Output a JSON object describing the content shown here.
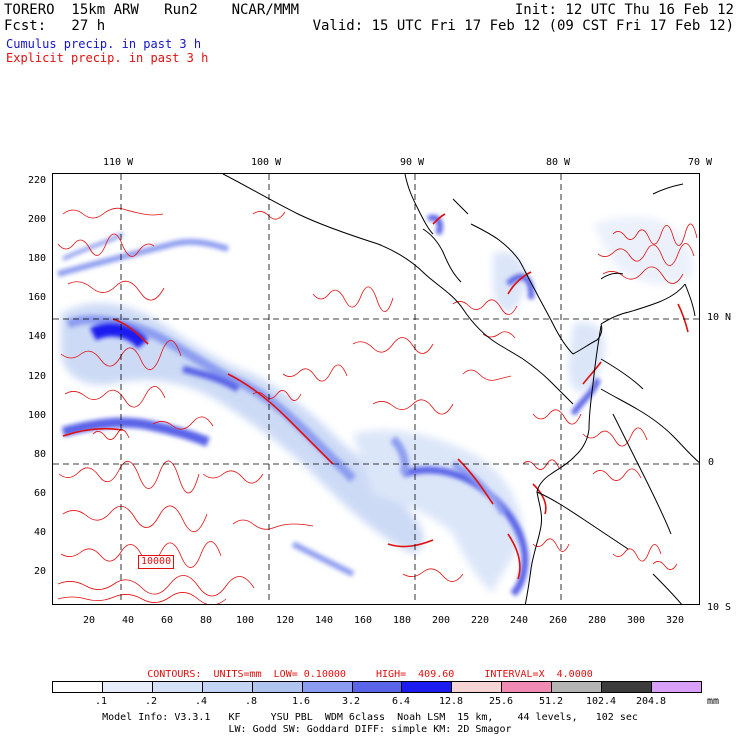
{
  "header": {
    "line1_left": "TORERO  15km ARW   Run2    NCAR/MMM",
    "line1_right": "Init: 12 UTC Thu 16 Feb 12",
    "line2_left": "Fcst:   27 h",
    "line2_right": "Valid: 15 UTC Fri 17 Feb 12 (09 CST Fri 17 Feb 12)",
    "legend_cumulus": "Cumulus precip. in past 3 h",
    "legend_explicit": "Explicit precip. in past 3 h"
  },
  "map": {
    "lon_labels": [
      "110 W",
      "100 W",
      "90 W",
      "80 W",
      "70 W"
    ],
    "lat_labels": [
      "10 N",
      "0",
      "10 S"
    ],
    "y_ticks": [
      "220",
      "200",
      "180",
      "160",
      "140",
      "120",
      "100",
      "80",
      "60",
      "40",
      "20"
    ],
    "x_ticks": [
      "20",
      "40",
      "60",
      "80",
      "100",
      "120",
      "140",
      "160",
      "180",
      "200",
      "220",
      "240",
      "260",
      "280",
      "300",
      "320"
    ],
    "contour_label": "10000"
  },
  "contour_info": {
    "text": "CONTOURS:  UNITS=mm  LOW= 0.10000     HIGH=  409.60     INTERVAL=X  4.0000"
  },
  "colorbar": {
    "colors": [
      "#ffffff",
      "#e8eefa",
      "#d6e2f8",
      "#c4d4f4",
      "#b0c4f0",
      "#8c9cf0",
      "#5a64e8",
      "#1c1cf0",
      "#f4d4d4",
      "#f08cb4",
      "#b4b4b4",
      "#3c3c3c",
      "#d8a0f8"
    ],
    "labels": [
      ".1",
      ".2",
      ".4",
      ".8",
      "1.6",
      "3.2",
      "6.4",
      "12.8",
      "25.6",
      "51.2",
      "102.4",
      "204.8"
    ],
    "units": "mm"
  },
  "model_info": {
    "line1": "Model Info: V3.3.1   KF     YSU PBL  WDM 6class  Noah LSM  15 km,    44 levels,   102 sec",
    "line2": "LW: Godd SW: Goddard DIFF: simple KM: 2D Smagor"
  }
}
